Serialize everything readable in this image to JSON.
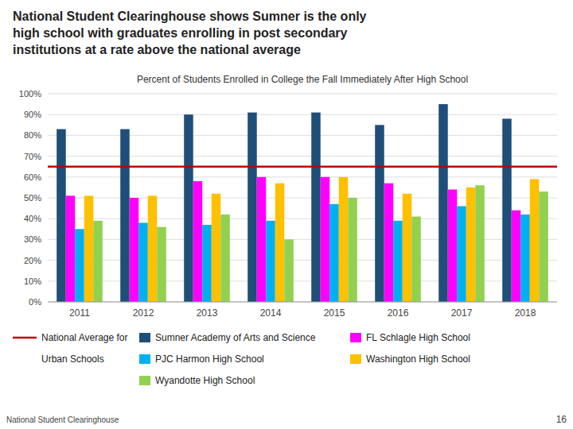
{
  "chart_data": {
    "type": "bar",
    "title": "National Student Clearinghouse shows Sumner is the only\nhigh school with graduates enrolling in post secondary\ninstitutions at a rate above the national average",
    "subtitle": "Percent of Students Enrolled in College the Fall Immediately After High School",
    "categories": [
      "2011",
      "2012",
      "2013",
      "2014",
      "2015",
      "2016",
      "2017",
      "2018"
    ],
    "series": [
      {
        "name": "Sumner Academy of Arts and Science",
        "color": "#1F4E79",
        "values": [
          83,
          83,
          90,
          91,
          91,
          85,
          95,
          88
        ]
      },
      {
        "name": "FL Schlagle High School",
        "color": "#FF00FF",
        "values": [
          51,
          50,
          58,
          60,
          60,
          57,
          54,
          44
        ]
      },
      {
        "name": "PJC Harmon High School",
        "color": "#00B0F0",
        "values": [
          35,
          38,
          37,
          39,
          47,
          39,
          46,
          42
        ]
      },
      {
        "name": "Washington High School",
        "color": "#FFC000",
        "values": [
          51,
          51,
          52,
          57,
          60,
          52,
          55,
          59
        ]
      },
      {
        "name": "Wyandotte High School",
        "color": "#92D050",
        "values": [
          39,
          36,
          42,
          30,
          50,
          41,
          56,
          53
        ]
      }
    ],
    "national_average": {
      "name": "National Average for\nUrban Schools",
      "value": 65,
      "color": "#C00000"
    },
    "ylim": [
      0,
      100
    ],
    "yticks": [
      {
        "value": 0,
        "label": "0%"
      },
      {
        "value": 10,
        "label": "10%"
      },
      {
        "value": 20,
        "label": "20%"
      },
      {
        "value": 30,
        "label": "30%"
      },
      {
        "value": 40,
        "label": "40%"
      },
      {
        "value": 50,
        "label": "50%"
      },
      {
        "value": 60,
        "label": "60%"
      },
      {
        "value": 70,
        "label": "70%"
      },
      {
        "value": 80,
        "label": "80%"
      },
      {
        "value": 90,
        "label": "90%"
      },
      {
        "value": 100,
        "label": "100%"
      }
    ],
    "grid": true,
    "legend": "bottom",
    "footer": "National Student Clearinghouse",
    "page_number": "16"
  }
}
